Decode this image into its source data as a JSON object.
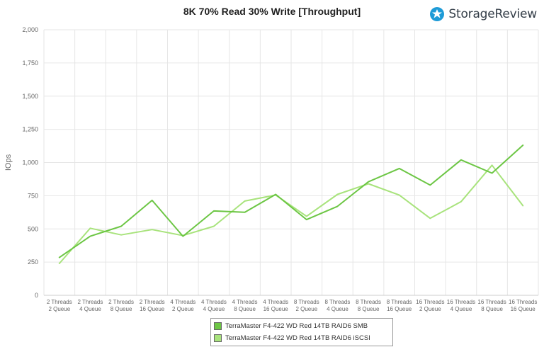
{
  "title": "8K 70% Read 30% Write [Throughput]",
  "brand": {
    "name": "StorageReview",
    "icon": "storagereview-logo-icon",
    "color": "#1e9bd7"
  },
  "chart_data": {
    "type": "line",
    "title": "8K 70% Read 30% Write [Throughput]",
    "xlabel": "",
    "ylabel": "IOps",
    "ylim": [
      0,
      2000
    ],
    "yticks": [
      0,
      250,
      500,
      750,
      1000,
      1250,
      1500,
      1750,
      2000
    ],
    "ytick_labels": [
      "0",
      "250",
      "500",
      "750",
      "1,000",
      "1,250",
      "1,500",
      "1,750",
      "2,000"
    ],
    "grid": true,
    "legend_position": "bottom-center",
    "categories": [
      [
        "2 Threads",
        "2 Queue"
      ],
      [
        "2 Threads",
        "4 Queue"
      ],
      [
        "2 Threads",
        "8 Queue"
      ],
      [
        "2 Threads",
        "16 Queue"
      ],
      [
        "4 Threads",
        "2 Queue"
      ],
      [
        "4 Threads",
        "4 Queue"
      ],
      [
        "4 Threads",
        "8 Queue"
      ],
      [
        "4 Threads",
        "16 Queue"
      ],
      [
        "8 Threads",
        "2 Queue"
      ],
      [
        "8 Threads",
        "4 Queue"
      ],
      [
        "8 Threads",
        "8 Queue"
      ],
      [
        "8 Threads",
        "16 Queue"
      ],
      [
        "16 Threads",
        "2 Queue"
      ],
      [
        "16 Threads",
        "4 Queue"
      ],
      [
        "16 Threads",
        "8 Queue"
      ],
      [
        "16 Threads",
        "16 Queue"
      ]
    ],
    "series": [
      {
        "name": "TerraMaster F4-422 WD Red 14TB RAID6 SMB",
        "color": "#6cc644",
        "values": [
          285,
          445,
          520,
          715,
          445,
          635,
          625,
          760,
          570,
          670,
          855,
          955,
          830,
          1020,
          920,
          1130
        ]
      },
      {
        "name": "TerraMaster F4-422 WD Red 14TB RAID6 iSCSI",
        "color": "#a8e37c",
        "values": [
          240,
          505,
          455,
          495,
          450,
          520,
          710,
          755,
          595,
          760,
          840,
          755,
          580,
          705,
          980,
          675
        ]
      }
    ]
  }
}
